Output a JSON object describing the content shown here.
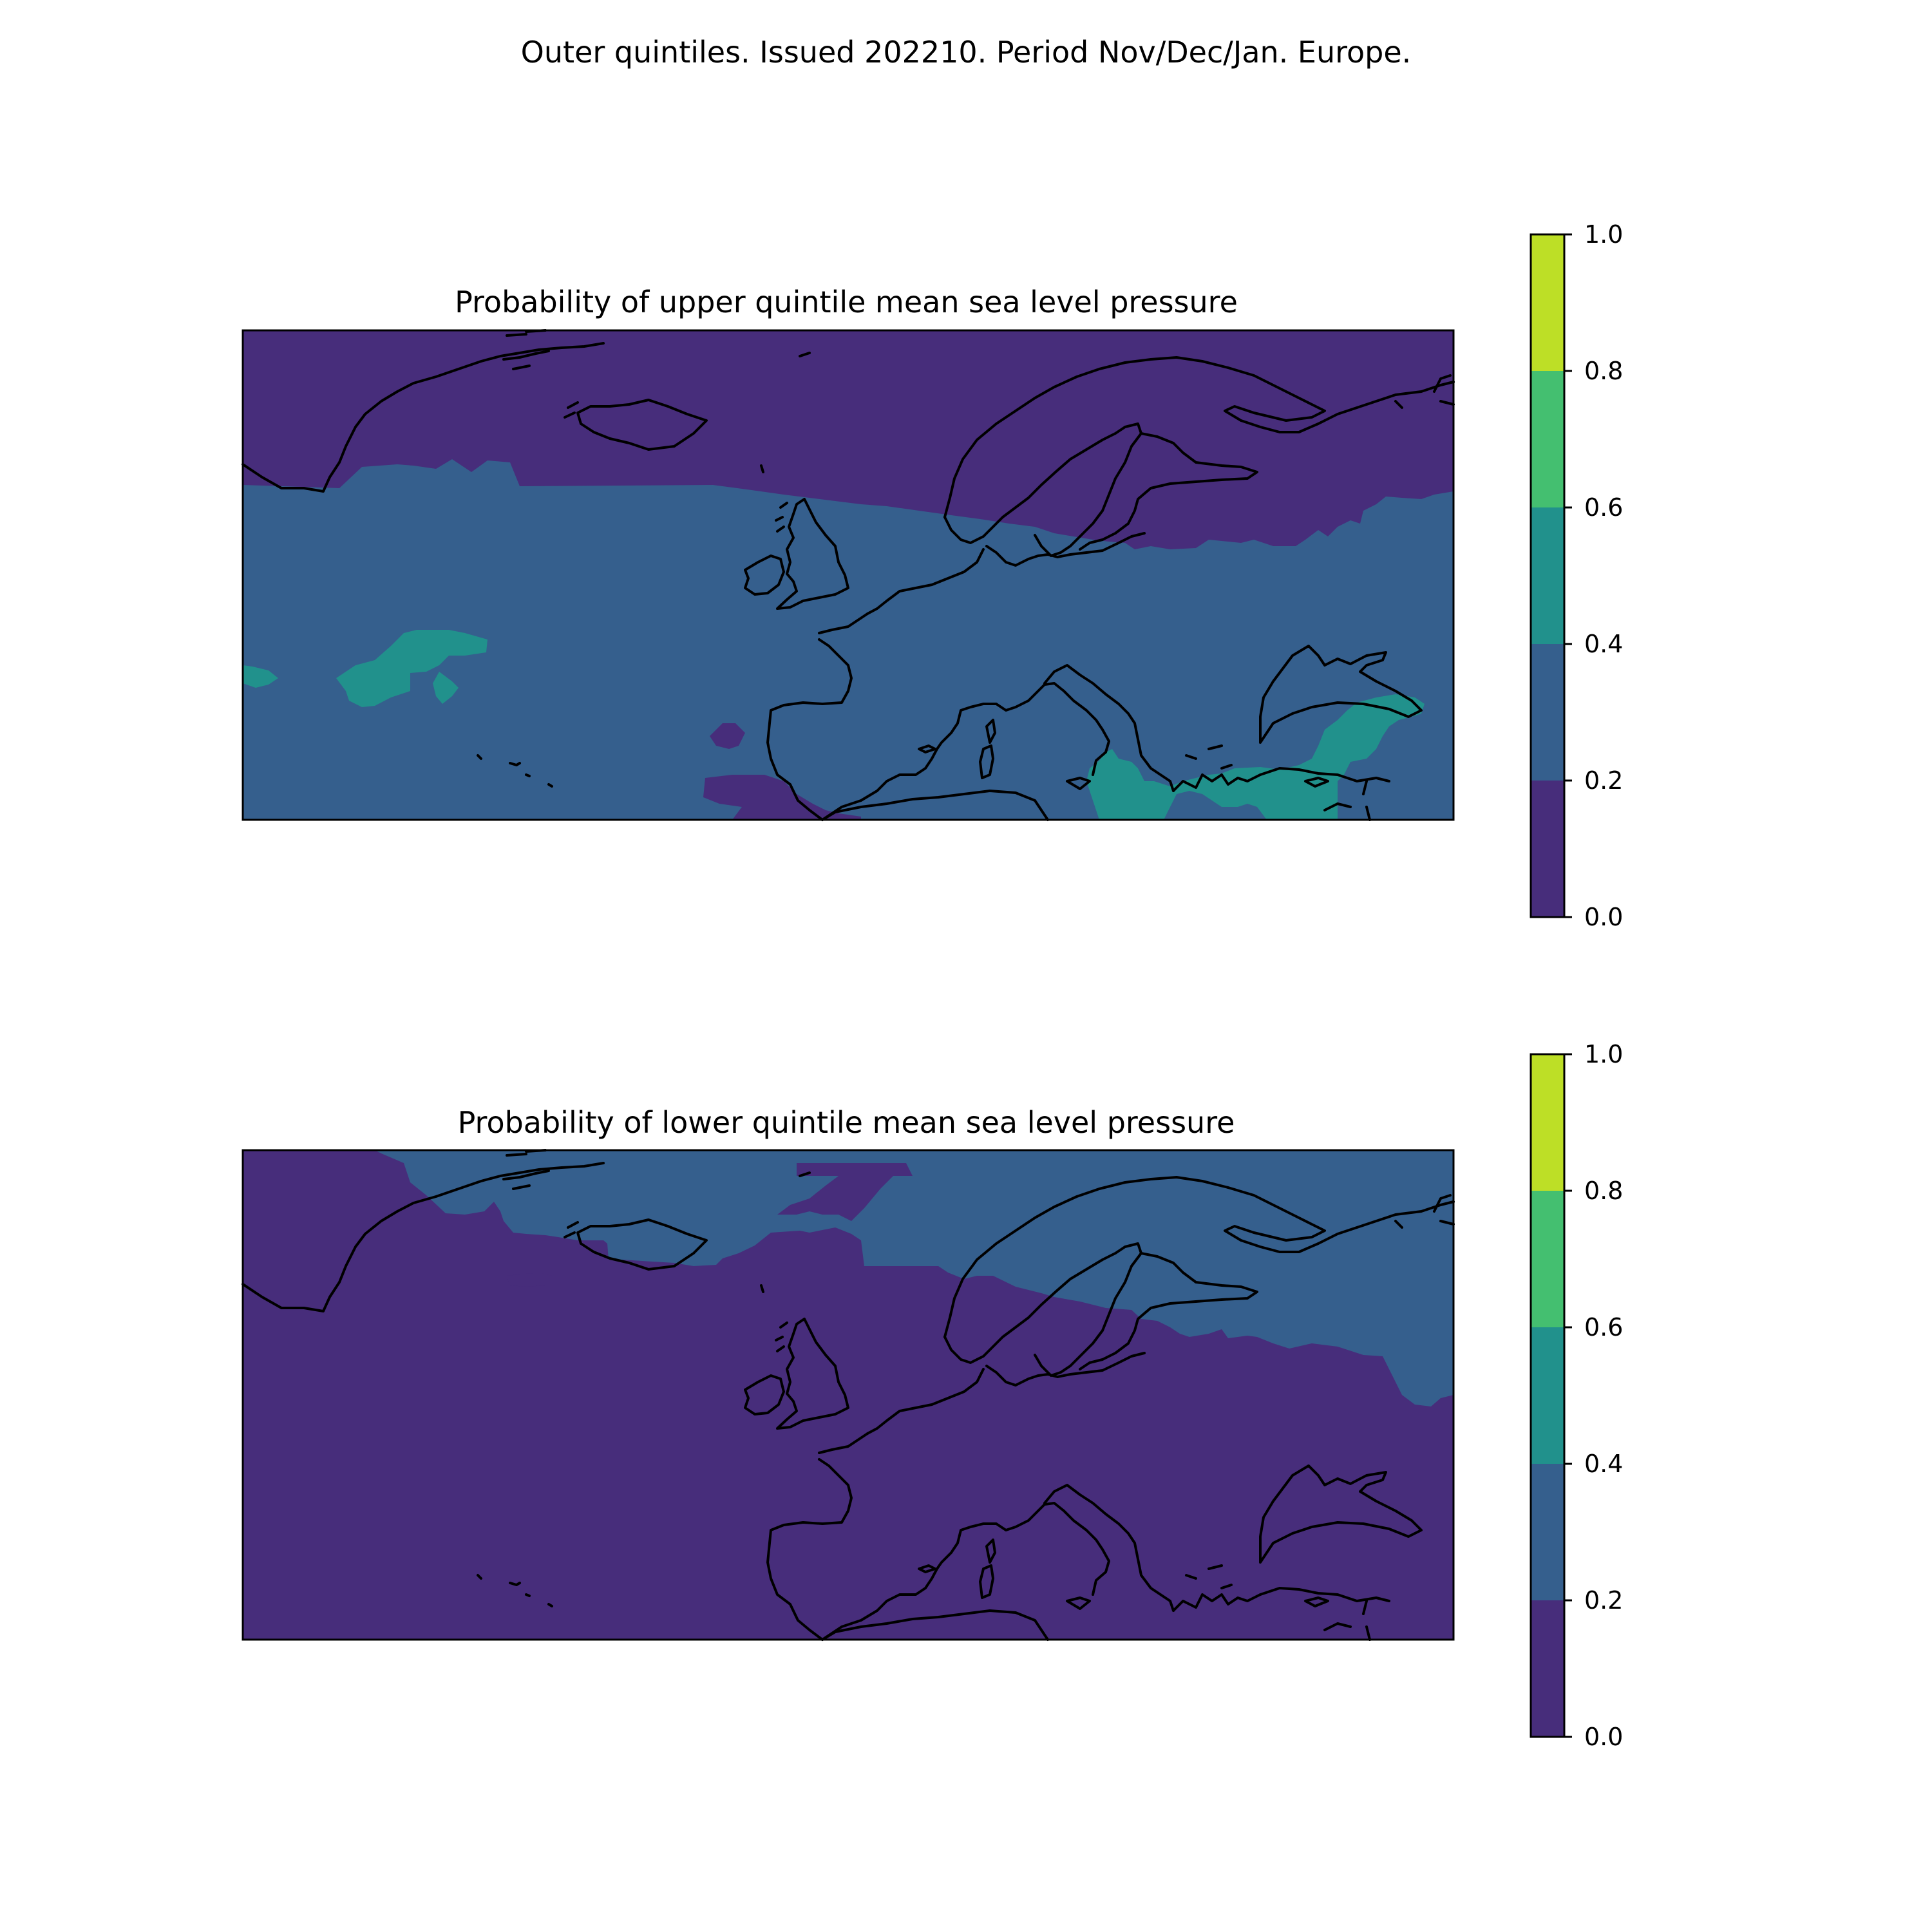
{
  "figure": {
    "suptitle": "Outer quintiles. Issued 202210. Period Nov/Dec/Jan. Europe."
  },
  "colors": {
    "0.0-0.2": "#472d7b",
    "0.2-0.4": "#355f8d",
    "0.4-0.6": "#21918c",
    "0.6-0.8": "#44bf70",
    "0.8-1.0": "#bddf26",
    "coastline": "#000000"
  },
  "panels": [
    {
      "title": "Probability of upper quintile mean sea level pressure",
      "colorbar": {
        "ticks": [
          "0.0",
          "0.2",
          "0.4",
          "0.6",
          "0.8",
          "1.0"
        ],
        "levels": [
          0.0,
          0.2,
          0.4,
          0.6,
          0.8,
          1.0
        ]
      },
      "regions": [
        {
          "area": "Arctic, Greenland, Iceland, Scandinavia",
          "probability_range": "0.0-0.2"
        },
        {
          "area": "North Atlantic, British Isles, central Europe",
          "probability_range": "0.2-0.4"
        },
        {
          "area": "Mid-Atlantic patches west of Iberia",
          "probability_range": "0.4-0.6"
        },
        {
          "area": "Eastern Mediterranean, Turkey, Caucasus",
          "probability_range": "0.4-0.6"
        },
        {
          "area": "North Africa near Gibraltar",
          "probability_range": "0.0-0.2"
        }
      ]
    },
    {
      "title": "Probability of lower quintile mean sea level pressure",
      "colorbar": {
        "ticks": [
          "0.0",
          "0.2",
          "0.4",
          "0.6",
          "0.8",
          "1.0"
        ],
        "levels": [
          0.0,
          0.2,
          0.4,
          0.6,
          0.8,
          1.0
        ]
      },
      "regions": [
        {
          "area": "Atlantic, western and southern Europe, Mediterranean",
          "probability_range": "0.0-0.2"
        },
        {
          "area": "Greenland Sea, Iceland, Scandinavia, Russia",
          "probability_range": "0.2-0.4"
        }
      ]
    }
  ]
}
